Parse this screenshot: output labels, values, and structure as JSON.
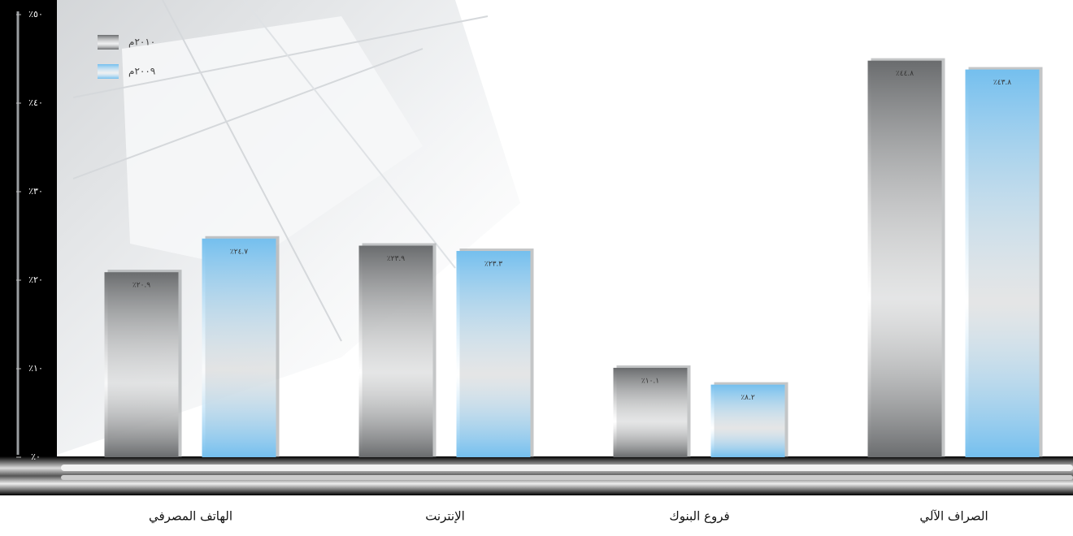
{
  "chart_data": {
    "type": "bar",
    "categories": [
      "الهاتف المصرفي",
      "الإنترنت",
      "فروع البنوك",
      "الصراف الآلي"
    ],
    "series": [
      {
        "name": "٢٠١٠م",
        "color": "#6a6c6e",
        "values": [
          20.9,
          23.9,
          10.1,
          44.8
        ],
        "value_labels": [
          "٪٢٠.٩",
          "٪٢٣.٩",
          "٪١٠.١",
          "٪٤٤.٨"
        ]
      },
      {
        "name": "٢٠٠٩م",
        "color": "#74bfee",
        "values": [
          24.7,
          23.3,
          8.2,
          43.8
        ],
        "value_labels": [
          "٪٢٤.٧",
          "٪٢٣.٣",
          "٪٨.٢",
          "٪٤٣.٨"
        ]
      }
    ],
    "ylim": [
      0,
      50
    ],
    "yticks": [
      {
        "value": 0,
        "label": "٪٠"
      },
      {
        "value": 10,
        "label": "٪١٠"
      },
      {
        "value": 20,
        "label": "٪٢٠"
      },
      {
        "value": 30,
        "label": "٪٣٠"
      },
      {
        "value": 40,
        "label": "٪٤٠"
      },
      {
        "value": 50,
        "label": "٪٥٠"
      }
    ],
    "legend": "top-left"
  }
}
